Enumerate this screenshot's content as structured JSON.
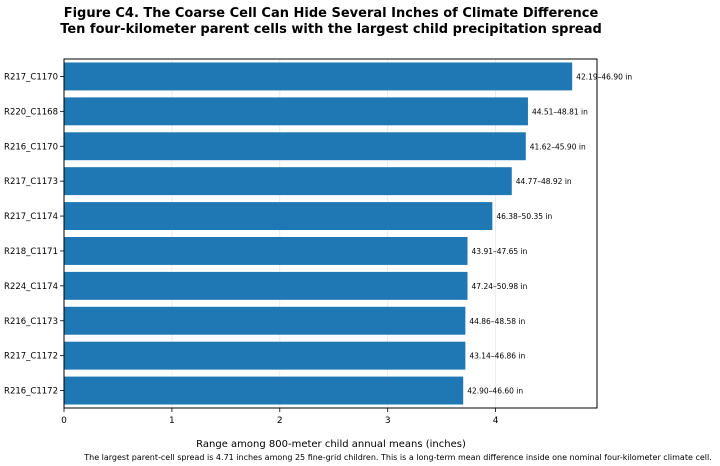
{
  "chart_data": {
    "type": "bar",
    "orientation": "horizontal",
    "title": "Figure C4. The Coarse Cell Can Hide Several Inches of Climate Difference",
    "subtitle": "Ten four-kilometer parent cells with the largest child precipitation spread",
    "xlabel": "Range among 800-meter child annual means (inches)",
    "ylabel": "",
    "xlim": [
      0,
      4.94
    ],
    "xticks": [
      0,
      1,
      2,
      3,
      4
    ],
    "grid": true,
    "bar_color": "#1f77b4",
    "categories": [
      "R217_C1170",
      "R220_C1168",
      "R216_C1170",
      "R217_C1173",
      "R217_C1174",
      "R218_C1171",
      "R224_C1174",
      "R216_C1173",
      "R217_C1172",
      "R216_C1172"
    ],
    "values": [
      4.71,
      4.3,
      4.28,
      4.15,
      3.97,
      3.74,
      3.74,
      3.72,
      3.72,
      3.7
    ],
    "bar_labels": [
      "42.19–46.90 in",
      "44.51–48.81 in",
      "41.62–45.90 in",
      "44.77–48.92 in",
      "46.38–50.35 in",
      "43.91–47.65 in",
      "47.24–50.98 in",
      "44.86–48.58 in",
      "43.14–46.86 in",
      "42.90–46.60 in"
    ],
    "footnote": "The largest parent-cell spread is 4.71 inches among 25 fine-grid children. This is a long-term mean difference inside one nominal four-kilometer climate cell."
  }
}
